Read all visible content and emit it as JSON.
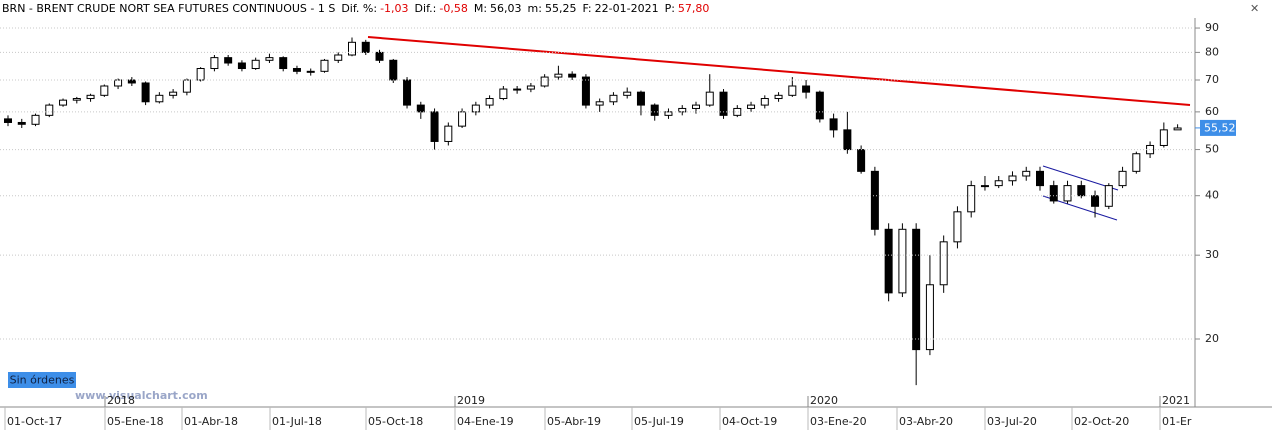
{
  "header": {
    "instrument": "BRN - BRENT CRUDE NORT SEA FUTURES CONTINUOUS - 1 S",
    "fields": [
      {
        "label": "Dif. %:",
        "value": "-1,03"
      },
      {
        "label": "Dif.:",
        "value": "-0,58"
      },
      {
        "label": "M:",
        "value": "56,03"
      },
      {
        "label": "m:",
        "value": "55,25"
      },
      {
        "label": "F:",
        "value": "22-01-2021"
      },
      {
        "label": "P:",
        "value": "57,80"
      }
    ]
  },
  "badge": "Sin órdenes",
  "watermark": "www.visualchart.com",
  "chart_data": {
    "type": "candlestick",
    "log_scale": true,
    "grid": true,
    "up_color": "#ffffff",
    "down_color": "#000000",
    "ylim": [
      15.5,
      96
    ],
    "yticks": [
      20,
      30,
      40,
      50,
      60,
      70,
      80,
      90
    ],
    "last_price": {
      "value": 55.52,
      "label": "55,52"
    },
    "xticks": [
      "01-Oct-17",
      "05-Ene-18",
      "01-Abr-18",
      "01-Jul-18",
      "05-Oct-18",
      "04-Ene-19",
      "05-Abr-19",
      "05-Jul-19",
      "04-Oct-19",
      "03-Ene-20",
      "03-Abr-20",
      "03-Jul-20",
      "02-Oct-20",
      "01-Er"
    ],
    "years": [
      "2018",
      "2019",
      "2020",
      "2021"
    ],
    "candles": [
      [
        58,
        59,
        56,
        57
      ],
      [
        57,
        58,
        55.5,
        56.5
      ],
      [
        56.5,
        59.5,
        56,
        59
      ],
      [
        59,
        62.5,
        58.5,
        62
      ],
      [
        62,
        64,
        61.5,
        63.5
      ],
      [
        63.5,
        64.5,
        62.5,
        64
      ],
      [
        64,
        65.5,
        63,
        65
      ],
      [
        65,
        68.5,
        64.5,
        68
      ],
      [
        68,
        70.5,
        67,
        70
      ],
      [
        70,
        71,
        68,
        69
      ],
      [
        69,
        69.5,
        62,
        63
      ],
      [
        63,
        66,
        62.5,
        65
      ],
      [
        65,
        67,
        64,
        66
      ],
      [
        66,
        70.5,
        65,
        70
      ],
      [
        70,
        74.5,
        69.5,
        74
      ],
      [
        74,
        79,
        73,
        78
      ],
      [
        78,
        79,
        75,
        76
      ],
      [
        76,
        77,
        73,
        74
      ],
      [
        74,
        78,
        73.5,
        77
      ],
      [
        77,
        79.5,
        76,
        78
      ],
      [
        78,
        78.5,
        73,
        74
      ],
      [
        74,
        75,
        72,
        73
      ],
      [
        73,
        74,
        71.5,
        73
      ],
      [
        73,
        77.5,
        72.5,
        77
      ],
      [
        77,
        80,
        76,
        79
      ],
      [
        79,
        86,
        78.5,
        84
      ],
      [
        84,
        85,
        79,
        80
      ],
      [
        80,
        81,
        76,
        77
      ],
      [
        77,
        77.5,
        69,
        70
      ],
      [
        70,
        71,
        61,
        62
      ],
      [
        62,
        63,
        58,
        60
      ],
      [
        60,
        61,
        50,
        52
      ],
      [
        52,
        57,
        51,
        56
      ],
      [
        56,
        61,
        55.5,
        60
      ],
      [
        60,
        63,
        59,
        62
      ],
      [
        62,
        65,
        61,
        64
      ],
      [
        64,
        68,
        63.5,
        67
      ],
      [
        67,
        68,
        65.5,
        67
      ],
      [
        67,
        69,
        66,
        68
      ],
      [
        68,
        72,
        67.5,
        71
      ],
      [
        71,
        75,
        70,
        72
      ],
      [
        72,
        73,
        70,
        71
      ],
      [
        71,
        72,
        61,
        62
      ],
      [
        62,
        64,
        60,
        63
      ],
      [
        63,
        66,
        62,
        65
      ],
      [
        65,
        67.5,
        64,
        66
      ],
      [
        66,
        66.5,
        59,
        62
      ],
      [
        62,
        62.5,
        57.5,
        59
      ],
      [
        59,
        61,
        58,
        60
      ],
      [
        60,
        62,
        59,
        61
      ],
      [
        61,
        63,
        59.5,
        62
      ],
      [
        62,
        72,
        61.5,
        66
      ],
      [
        66,
        67,
        58,
        59
      ],
      [
        59,
        62,
        58.5,
        61
      ],
      [
        61,
        63,
        60,
        62
      ],
      [
        62,
        65,
        61,
        64
      ],
      [
        64,
        66,
        63,
        65
      ],
      [
        65,
        71,
        64.5,
        68
      ],
      [
        68,
        70,
        64,
        66
      ],
      [
        66,
        66.5,
        57,
        58
      ],
      [
        58,
        59.5,
        53,
        55
      ],
      [
        55,
        60,
        49,
        50
      ],
      [
        50,
        51,
        44.5,
        45
      ],
      [
        45,
        46,
        33,
        34
      ],
      [
        34,
        35,
        24,
        25
      ],
      [
        25,
        35,
        24.5,
        34
      ],
      [
        34,
        35,
        16,
        19
      ],
      [
        19,
        30,
        18.5,
        26
      ],
      [
        26,
        33,
        25,
        32
      ],
      [
        32,
        38,
        31,
        37
      ],
      [
        37,
        43,
        36,
        42
      ],
      [
        42,
        44,
        41,
        42
      ],
      [
        42,
        44,
        41.5,
        43
      ],
      [
        43,
        45,
        42,
        44
      ],
      [
        44,
        46,
        43,
        45
      ],
      [
        45,
        46,
        41,
        42
      ],
      [
        42,
        43,
        38.5,
        39
      ],
      [
        39,
        43,
        38.5,
        42
      ],
      [
        42,
        43,
        39.5,
        40
      ],
      [
        40,
        41,
        36,
        38
      ],
      [
        38,
        42.5,
        37.5,
        42
      ],
      [
        42,
        46,
        41.5,
        45
      ],
      [
        45,
        49.5,
        44.5,
        49
      ],
      [
        49,
        52,
        48,
        51
      ],
      [
        51,
        57,
        50.5,
        55
      ],
      [
        55,
        56.5,
        55,
        55.5
      ]
    ]
  }
}
